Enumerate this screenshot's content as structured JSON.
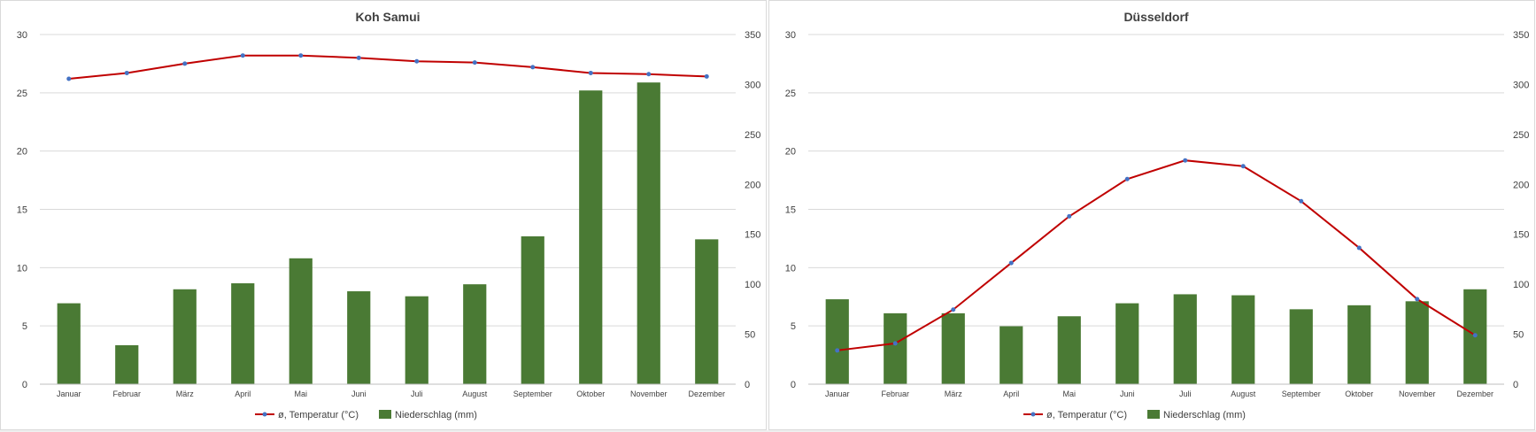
{
  "colors": {
    "temperature_line": "#c00000",
    "temperature_marker": "#4472c4",
    "precipitation_bar": "#4a7a34",
    "grid": "#d9d9d9",
    "text": "#404040"
  },
  "legend": {
    "temperature": "ø, Temperatur (°C)",
    "precipitation": "Niederschlag (mm)"
  },
  "chart_data": [
    {
      "type": "bar+line",
      "title": "Koh Samui",
      "categories": [
        "Januar",
        "Februar",
        "März",
        "April",
        "Mai",
        "Juni",
        "Juli",
        "August",
        "September",
        "Oktober",
        "November",
        "Dezember"
      ],
      "series": [
        {
          "name": "ø, Temperatur (°C)",
          "type": "line",
          "axis": "left",
          "values": [
            26.2,
            26.7,
            27.5,
            28.2,
            28.2,
            28.0,
            27.7,
            27.6,
            27.2,
            26.7,
            26.6,
            26.4
          ]
        },
        {
          "name": "Niederschlag (mm)",
          "type": "bar",
          "axis": "right",
          "values": [
            81,
            39,
            95,
            101,
            126,
            93,
            88,
            100,
            148,
            294,
            302,
            145
          ]
        }
      ],
      "left_ticks": [
        0,
        5,
        10,
        15,
        20,
        25,
        30
      ],
      "right_ticks": [
        0,
        50,
        100,
        150,
        200,
        250,
        300,
        350
      ],
      "ylim_left": [
        0,
        30
      ],
      "ylim_right": [
        0,
        350
      ],
      "grid": true,
      "legend_position": "bottom"
    },
    {
      "type": "bar+line",
      "title": "Düsseldorf",
      "categories": [
        "Januar",
        "Februar",
        "März",
        "April",
        "Mai",
        "Juni",
        "Juli",
        "August",
        "September",
        "Oktober",
        "November",
        "Dezember"
      ],
      "series": [
        {
          "name": "ø, Temperatur (°C)",
          "type": "line",
          "axis": "left",
          "values": [
            2.9,
            3.5,
            6.4,
            10.4,
            14.4,
            17.6,
            19.2,
            18.7,
            15.7,
            11.7,
            7.3,
            4.2
          ]
        },
        {
          "name": "Niederschlag (mm)",
          "type": "bar",
          "axis": "right",
          "values": [
            85,
            71,
            71,
            58,
            68,
            81,
            90,
            89,
            75,
            79,
            83,
            95
          ]
        }
      ],
      "left_ticks": [
        0,
        5,
        10,
        15,
        20,
        25,
        30
      ],
      "right_ticks": [
        0,
        50,
        100,
        150,
        200,
        250,
        300,
        350
      ],
      "ylim_left": [
        0,
        30
      ],
      "ylim_right": [
        0,
        350
      ],
      "grid": true,
      "legend_position": "bottom"
    }
  ]
}
